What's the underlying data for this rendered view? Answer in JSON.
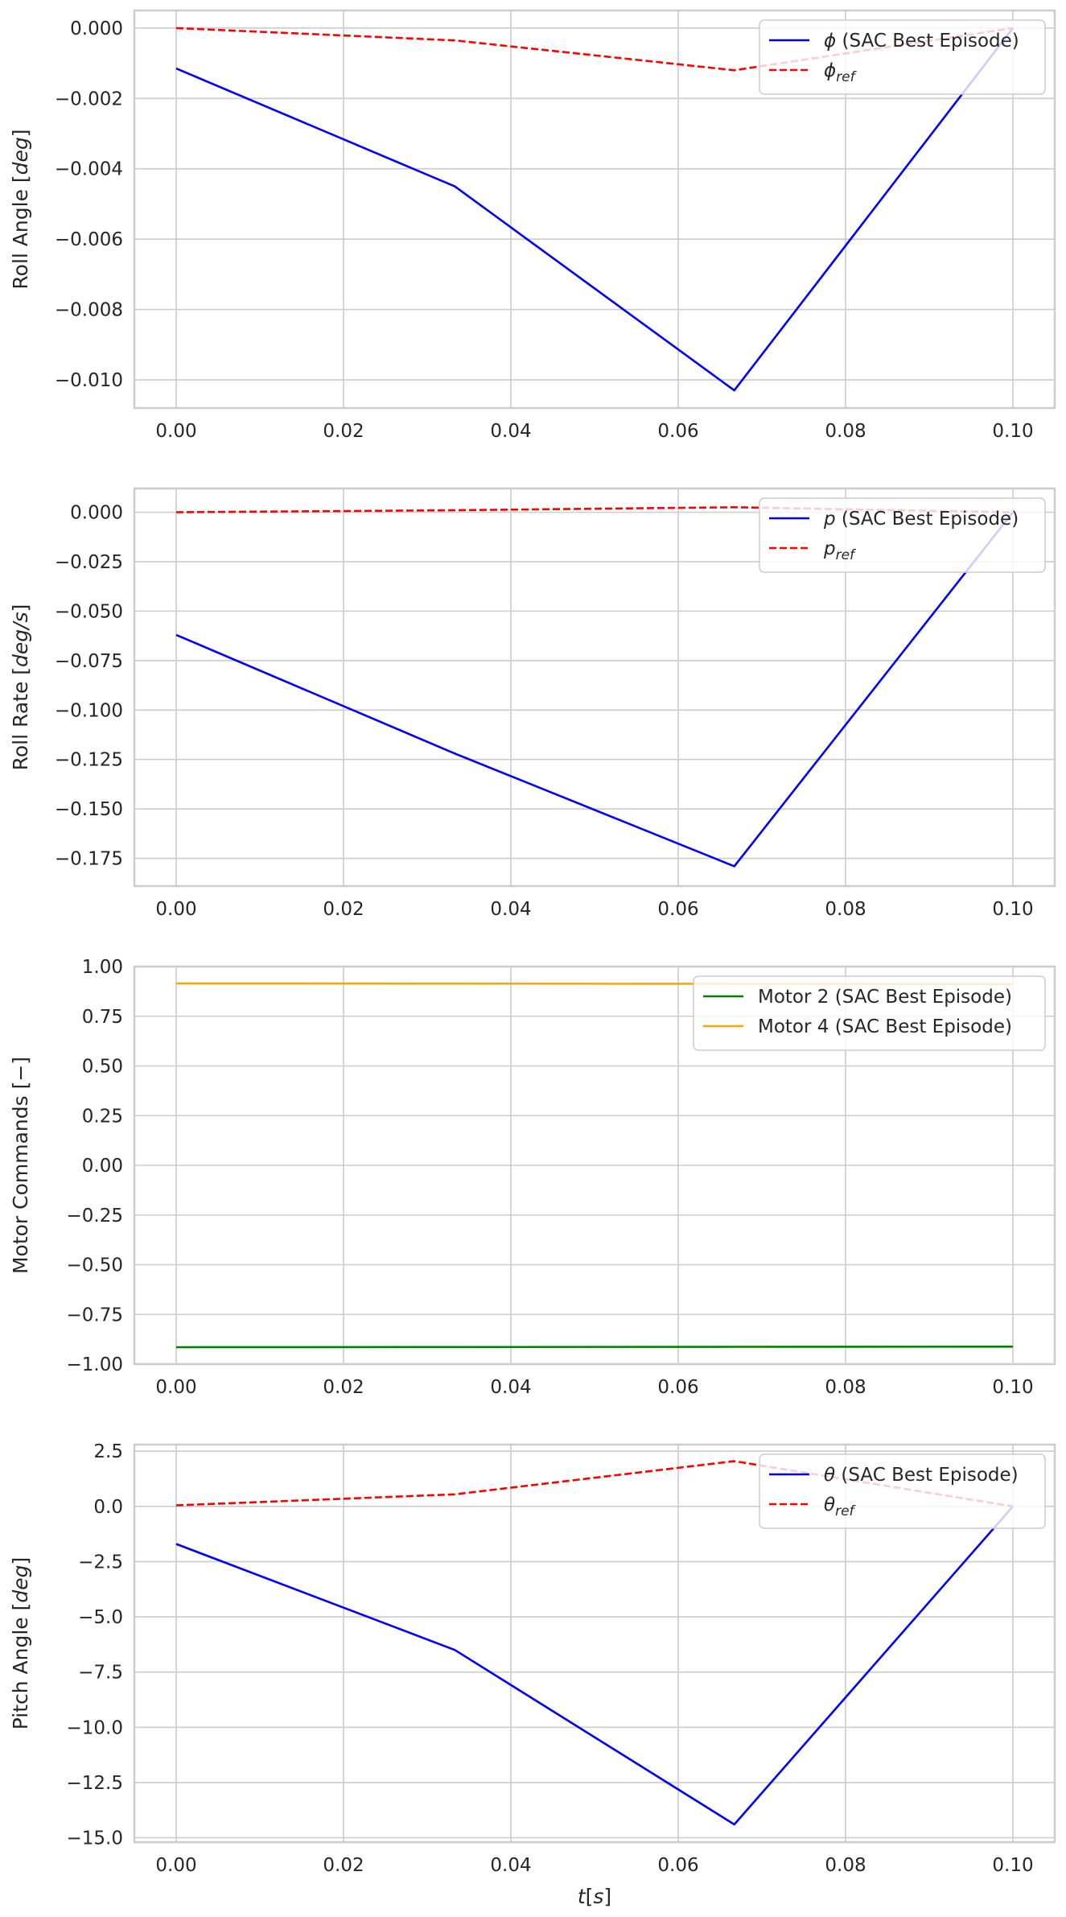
{
  "chart_data": [
    {
      "type": "line",
      "ylabel": "Roll Angle [",
      "ylabel_unit": "deg",
      "ylabel_close": "]",
      "xlim": [
        -0.005,
        0.105
      ],
      "ylim": [
        -0.0108,
        0.0005
      ],
      "xticks": [
        0.0,
        0.02,
        0.04,
        0.06,
        0.08,
        0.1
      ],
      "xtick_labels": [
        "0.00",
        "0.02",
        "0.04",
        "0.06",
        "0.08",
        "0.10"
      ],
      "yticks": [
        0.0,
        -0.002,
        -0.004,
        -0.006,
        -0.008,
        -0.01
      ],
      "ytick_labels": [
        "0.000",
        "−0.002",
        "−0.004",
        "−0.006",
        "−0.008",
        "−0.010"
      ],
      "grid": true,
      "legend_position": "top-right",
      "series": [
        {
          "sym": "ϕ",
          "name": " (SAC Best Episode)",
          "sub": "",
          "color": "#0000ff",
          "dash": false,
          "x": [
            0.0,
            0.0333,
            0.0667,
            0.1
          ],
          "y": [
            -0.00115,
            -0.0045,
            -0.0103,
            0.0
          ]
        },
        {
          "sym": "ϕ",
          "name": "",
          "sub": "ref",
          "color": "#ff0000",
          "dash": true,
          "x": [
            0.0,
            0.0333,
            0.0667,
            0.1
          ],
          "y": [
            0.0,
            -0.00035,
            -0.0012,
            0.0
          ]
        }
      ]
    },
    {
      "type": "line",
      "ylabel": "Roll Rate [",
      "ylabel_unit": "deg/s",
      "ylabel_close": "]",
      "xlim": [
        -0.005,
        0.105
      ],
      "ylim": [
        -0.189,
        0.012
      ],
      "xticks": [
        0.0,
        0.02,
        0.04,
        0.06,
        0.08,
        0.1
      ],
      "xtick_labels": [
        "0.00",
        "0.02",
        "0.04",
        "0.06",
        "0.08",
        "0.10"
      ],
      "yticks": [
        0.0,
        -0.025,
        -0.05,
        -0.075,
        -0.1,
        -0.125,
        -0.15,
        -0.175
      ],
      "ytick_labels": [
        "0.000",
        "−0.025",
        "−0.050",
        "−0.075",
        "−0.100",
        "−0.125",
        "−0.150",
        "−0.175"
      ],
      "grid": true,
      "legend_position": "top-right",
      "series": [
        {
          "sym": "p",
          "name": " (SAC Best Episode)",
          "sub": "",
          "color": "#0000ff",
          "dash": false,
          "x": [
            0.0,
            0.0333,
            0.0667,
            0.1
          ],
          "y": [
            -0.062,
            -0.122,
            -0.179,
            0.0
          ]
        },
        {
          "sym": "p",
          "name": "",
          "sub": "ref",
          "color": "#ff0000",
          "dash": true,
          "x": [
            0.0,
            0.0333,
            0.0667,
            0.1
          ],
          "y": [
            0.0,
            0.001,
            0.0025,
            0.0
          ]
        }
      ]
    },
    {
      "type": "line",
      "ylabel": "Motor Commands [−]",
      "ylabel_unit": "",
      "ylabel_close": "",
      "xlim": [
        -0.005,
        0.105
      ],
      "ylim": [
        -1.0,
        1.0
      ],
      "xticks": [
        0.0,
        0.02,
        0.04,
        0.06,
        0.08,
        0.1
      ],
      "xtick_labels": [
        "0.00",
        "0.02",
        "0.04",
        "0.06",
        "0.08",
        "0.10"
      ],
      "yticks": [
        1.0,
        0.75,
        0.5,
        0.25,
        0.0,
        -0.25,
        -0.5,
        -0.75,
        -1.0
      ],
      "ytick_labels": [
        "1.00",
        "0.75",
        "0.50",
        "0.25",
        "0.00",
        "−0.25",
        "−0.50",
        "−0.75",
        "−1.00"
      ],
      "grid": true,
      "legend_position": "top-right",
      "series": [
        {
          "sym": "",
          "name": "Motor 2 (SAC Best Episode)",
          "sub": "",
          "color": "#008000",
          "dash": false,
          "x": [
            0.0,
            0.0333,
            0.0667,
            0.1
          ],
          "y": [
            -0.915,
            -0.914,
            -0.913,
            -0.912
          ]
        },
        {
          "sym": "",
          "name": "Motor 4 (SAC Best Episode)",
          "sub": "",
          "color": "#ffa500",
          "dash": false,
          "x": [
            0.0,
            0.0333,
            0.0667,
            0.1
          ],
          "y": [
            0.915,
            0.914,
            0.913,
            0.912
          ]
        }
      ]
    },
    {
      "type": "line",
      "ylabel": "Pitch Angle [",
      "ylabel_unit": "deg",
      "ylabel_close": "]",
      "xlabel_sym": "t",
      "xlabel_unit": "s",
      "xlim": [
        -0.005,
        0.105
      ],
      "ylim": [
        -15.2,
        2.8
      ],
      "xticks": [
        0.0,
        0.02,
        0.04,
        0.06,
        0.08,
        0.1
      ],
      "xtick_labels": [
        "0.00",
        "0.02",
        "0.04",
        "0.06",
        "0.08",
        "0.10"
      ],
      "yticks": [
        2.5,
        0.0,
        -2.5,
        -5.0,
        -7.5,
        -10.0,
        -12.5,
        -15.0
      ],
      "ytick_labels": [
        "2.5",
        "0.0",
        "−2.5",
        "−5.0",
        "−7.5",
        "−10.0",
        "−12.5",
        "−15.0"
      ],
      "grid": true,
      "legend_position": "top-right",
      "series": [
        {
          "sym": "θ",
          "name": " (SAC Best Episode)",
          "sub": "",
          "color": "#0000ff",
          "dash": false,
          "x": [
            0.0,
            0.0333,
            0.0667,
            0.1
          ],
          "y": [
            -1.7,
            -6.5,
            -14.4,
            0.0
          ]
        },
        {
          "sym": "θ",
          "name": "",
          "sub": "ref",
          "color": "#ff0000",
          "dash": true,
          "x": [
            0.0,
            0.0333,
            0.0667,
            0.1
          ],
          "y": [
            0.05,
            0.55,
            2.05,
            0.0
          ]
        }
      ]
    }
  ]
}
